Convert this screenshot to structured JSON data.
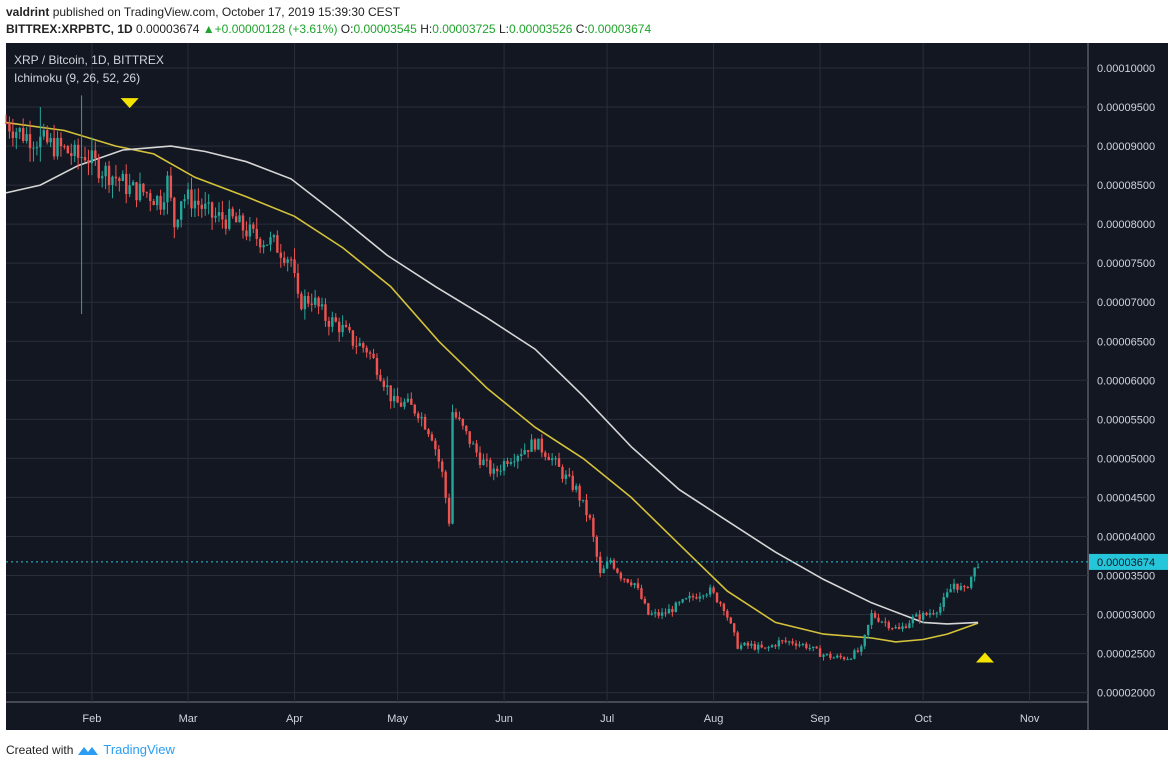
{
  "header": {
    "publisher": "valdrint",
    "published_text": "published on TradingView.com, October 17, 2019 15:39:30 CEST",
    "symbol": "BITTREX:XRPBTC, 1D",
    "last": "0.00003674",
    "change": "+0.00000128 (+3.61%)",
    "o_label": "O:",
    "o_value": "0.00003545",
    "h_label": "H:",
    "h_value": "0.00003725",
    "l_label": "L:",
    "l_value": "0.00003526",
    "c_label": "C:",
    "c_value": "0.00003674"
  },
  "chart_data": {
    "type": "candlestick",
    "title": "XRP / Bitcoin, 1D, BITTREX",
    "indicator_label": "Ichimoku (9, 26, 52, 26)",
    "x_tick_labels": [
      "Feb",
      "Mar",
      "Apr",
      "May",
      "Jun",
      "Jul",
      "Aug",
      "Sep",
      "Oct",
      "Nov"
    ],
    "y_tick_labels": [
      "0.00010000",
      "0.00009500",
      "0.00009000",
      "0.00008500",
      "0.00008000",
      "0.00007500",
      "0.00007000",
      "0.00006500",
      "0.00006000",
      "0.00005500",
      "0.00005000",
      "0.00004500",
      "0.00004000",
      "0.00003500",
      "0.00003000",
      "0.00002500",
      "0.00002000"
    ],
    "x_range": [
      "2019-01-07",
      "2019-11-18"
    ],
    "ylim": [
      1.88e-05,
      0.0001032
    ],
    "last_price_label": "0.00003674",
    "close_path": [
      [
        "2019-01-07",
        9.3e-05
      ],
      [
        "2019-01-12",
        9.15e-05
      ],
      [
        "2019-01-18",
        9.05e-05
      ],
      [
        "2019-01-24",
        8.95e-05
      ],
      [
        "2019-01-28",
        8.85e-05
      ],
      [
        "2019-01-30",
        8.9e-05
      ],
      [
        "2019-02-01",
        8.8e-05
      ],
      [
        "2019-02-04",
        8.7e-05
      ],
      [
        "2019-02-08",
        8.6e-05
      ],
      [
        "2019-02-12",
        8.45e-05
      ],
      [
        "2019-02-17",
        8.4e-05
      ],
      [
        "2019-02-21",
        8.3e-05
      ],
      [
        "2019-02-23",
        8.55e-05
      ],
      [
        "2019-02-25",
        8e-05
      ],
      [
        "2019-02-27",
        8.35e-05
      ],
      [
        "2019-03-03",
        8.3e-05
      ],
      [
        "2019-03-08",
        8.1e-05
      ],
      [
        "2019-03-14",
        8.05e-05
      ],
      [
        "2019-03-20",
        7.85e-05
      ],
      [
        "2019-03-26",
        7.75e-05
      ],
      [
        "2019-03-31",
        7.55e-05
      ],
      [
        "2019-04-02",
        7e-05
      ],
      [
        "2019-04-06",
        7.05e-05
      ],
      [
        "2019-04-10",
        6.8e-05
      ],
      [
        "2019-04-14",
        6.7e-05
      ],
      [
        "2019-04-18",
        6.5e-05
      ],
      [
        "2019-04-22",
        6.4e-05
      ],
      [
        "2019-04-26",
        6.1e-05
      ],
      [
        "2019-04-30",
        5.7e-05
      ],
      [
        "2019-05-03",
        5.7e-05
      ],
      [
        "2019-05-07",
        5.6e-05
      ],
      [
        "2019-05-11",
        5.3e-05
      ],
      [
        "2019-05-14",
        4.8e-05
      ],
      [
        "2019-05-16",
        4.2e-05
      ],
      [
        "2019-05-17",
        5.6e-05
      ],
      [
        "2019-05-21",
        5.3e-05
      ],
      [
        "2019-05-25",
        5e-05
      ],
      [
        "2019-05-29",
        4.8e-05
      ],
      [
        "2019-06-02",
        5e-05
      ],
      [
        "2019-06-06",
        5.1e-05
      ],
      [
        "2019-06-10",
        5.2e-05
      ],
      [
        "2019-06-14",
        5.05e-05
      ],
      [
        "2019-06-18",
        4.8e-05
      ],
      [
        "2019-06-22",
        4.6e-05
      ],
      [
        "2019-06-26",
        4.2e-05
      ],
      [
        "2019-06-29",
        3.5e-05
      ],
      [
        "2019-07-02",
        3.7e-05
      ],
      [
        "2019-07-05",
        3.5e-05
      ],
      [
        "2019-07-09",
        3.4e-05
      ],
      [
        "2019-07-13",
        3e-05
      ],
      [
        "2019-07-17",
        3e-05
      ],
      [
        "2019-07-21",
        3.1e-05
      ],
      [
        "2019-07-25",
        3.2e-05
      ],
      [
        "2019-07-29",
        3.3e-05
      ],
      [
        "2019-07-31",
        3.3e-05
      ],
      [
        "2019-08-04",
        3.1e-05
      ],
      [
        "2019-08-08",
        2.6e-05
      ],
      [
        "2019-08-12",
        2.6e-05
      ],
      [
        "2019-08-16",
        2.55e-05
      ],
      [
        "2019-08-20",
        2.65e-05
      ],
      [
        "2019-08-24",
        2.65e-05
      ],
      [
        "2019-08-28",
        2.6e-05
      ],
      [
        "2019-09-01",
        2.5e-05
      ],
      [
        "2019-09-05",
        2.45e-05
      ],
      [
        "2019-09-09",
        2.45e-05
      ],
      [
        "2019-09-13",
        2.55e-05
      ],
      [
        "2019-09-16",
        3e-05
      ],
      [
        "2019-09-20",
        2.9e-05
      ],
      [
        "2019-09-24",
        2.8e-05
      ],
      [
        "2019-09-28",
        2.95e-05
      ],
      [
        "2019-10-02",
        3e-05
      ],
      [
        "2019-10-06",
        3.1e-05
      ],
      [
        "2019-10-10",
        3.4e-05
      ],
      [
        "2019-10-13",
        3.3e-05
      ],
      [
        "2019-10-17",
        3.67e-05
      ]
    ],
    "series": [
      {
        "type": "line",
        "color": "#d4c23a",
        "points": [
          [
            "2019-01-07",
            9.3e-05
          ],
          [
            "2019-01-24",
            9.2e-05
          ],
          [
            "2019-02-08",
            9e-05
          ],
          [
            "2019-02-19",
            8.9e-05
          ],
          [
            "2019-03-03",
            8.6e-05
          ],
          [
            "2019-03-18",
            8.35e-05
          ],
          [
            "2019-04-01",
            8.1e-05
          ],
          [
            "2019-04-15",
            7.7e-05
          ],
          [
            "2019-04-29",
            7.2e-05
          ],
          [
            "2019-05-13",
            6.5e-05
          ],
          [
            "2019-05-27",
            5.9e-05
          ],
          [
            "2019-06-10",
            5.4e-05
          ],
          [
            "2019-06-24",
            5e-05
          ],
          [
            "2019-07-08",
            4.5e-05
          ],
          [
            "2019-07-22",
            3.9e-05
          ],
          [
            "2019-08-05",
            3.3e-05
          ],
          [
            "2019-08-19",
            2.9e-05
          ],
          [
            "2019-09-02",
            2.75e-05
          ],
          [
            "2019-09-16",
            2.7e-05
          ],
          [
            "2019-09-23",
            2.65e-05
          ],
          [
            "2019-10-01",
            2.68e-05
          ],
          [
            "2019-10-08",
            2.75e-05
          ],
          [
            "2019-10-17",
            2.89e-05
          ]
        ]
      },
      {
        "type": "line",
        "color": "#d6d6d6",
        "points": [
          [
            "2019-01-07",
            8.4e-05
          ],
          [
            "2019-01-17",
            8.5e-05
          ],
          [
            "2019-01-28",
            8.75e-05
          ],
          [
            "2019-02-10",
            8.95e-05
          ],
          [
            "2019-02-24",
            9e-05
          ],
          [
            "2019-03-06",
            8.93e-05
          ],
          [
            "2019-03-18",
            8.8e-05
          ],
          [
            "2019-03-31",
            8.58e-05
          ],
          [
            "2019-04-14",
            8.1e-05
          ],
          [
            "2019-04-28",
            7.6e-05
          ],
          [
            "2019-05-12",
            7.2e-05
          ],
          [
            "2019-05-27",
            6.8e-05
          ],
          [
            "2019-06-10",
            6.4e-05
          ],
          [
            "2019-06-24",
            5.8e-05
          ],
          [
            "2019-07-08",
            5.15e-05
          ],
          [
            "2019-07-22",
            4.6e-05
          ],
          [
            "2019-08-05",
            4.2e-05
          ],
          [
            "2019-08-19",
            3.8e-05
          ],
          [
            "2019-09-02",
            3.45e-05
          ],
          [
            "2019-09-16",
            3.15e-05
          ],
          [
            "2019-10-01",
            2.9e-05
          ],
          [
            "2019-10-08",
            2.88e-05
          ],
          [
            "2019-10-17",
            2.9e-05
          ]
        ]
      }
    ],
    "markers": [
      {
        "shape": "triangle-down",
        "date": "2019-02-12",
        "value": 9.55e-05,
        "color": "#f5e400"
      },
      {
        "shape": "triangle-up",
        "date": "2019-10-19",
        "value": 2.45e-05,
        "color": "#f5e400"
      }
    ],
    "colors": {
      "up": "#26a69a",
      "down": "#ef5350",
      "background": "#131722",
      "grid": "#2a2e39",
      "last_line": "#26c6da"
    }
  },
  "footer": {
    "created_with": "Created with",
    "brand": "TradingView"
  }
}
